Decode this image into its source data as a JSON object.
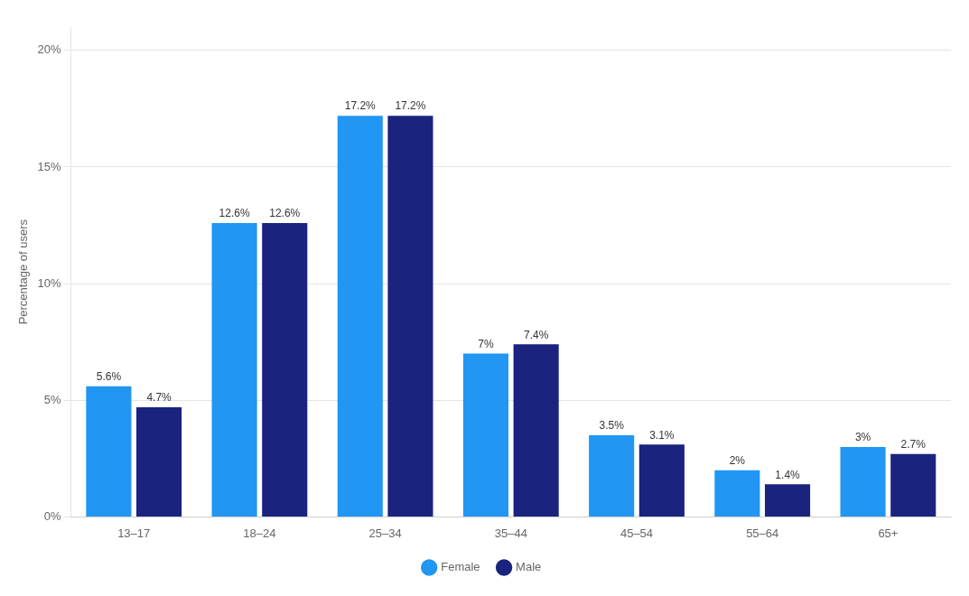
{
  "chart_data": {
    "type": "bar",
    "categories": [
      "13–17",
      "18–24",
      "25–34",
      "35–44",
      "45–54",
      "55–64",
      "65+"
    ],
    "series": [
      {
        "name": "Female",
        "color": "#2196F3",
        "values": [
          5.6,
          12.6,
          17.2,
          7.0,
          3.5,
          2.0,
          3.0
        ],
        "value_labels": [
          "5.6%",
          "12.6%",
          "17.2%",
          "7%",
          "3.5%",
          "2%",
          "3%"
        ]
      },
      {
        "name": "Male",
        "color": "#1a237e",
        "values": [
          4.7,
          12.6,
          17.2,
          7.4,
          3.1,
          1.4,
          2.7
        ],
        "value_labels": [
          "4.7%",
          "12.6%",
          "17.2%",
          "7.4%",
          "3.1%",
          "1.4%",
          "2.7%"
        ]
      }
    ],
    "y_label": "Percentage of users",
    "ylim": [
      0,
      21
    ],
    "yticks": [
      {
        "value": 0,
        "label": "0%"
      },
      {
        "value": 5,
        "label": "5%"
      },
      {
        "value": 10,
        "label": "10%"
      },
      {
        "value": 15,
        "label": "15%"
      },
      {
        "value": 20,
        "label": "20%"
      }
    ],
    "grid": true,
    "legend": "bottom",
    "data_labels": true
  }
}
